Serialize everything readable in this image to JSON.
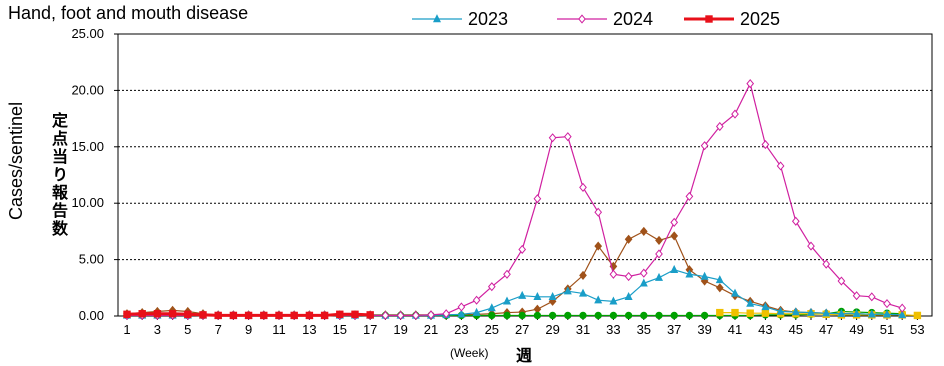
{
  "chart_data": {
    "type": "line",
    "title": "Hand, foot and mouth disease",
    "ylabel": "Cases/sentinel",
    "ylabel_jp": "定点当り報告数",
    "xlabel": "(Week)",
    "xlabel_jp": "週",
    "ylim": [
      0,
      25
    ],
    "yticks": [
      "0.00",
      "5.00",
      "10.00",
      "15.00",
      "20.00",
      "25.00"
    ],
    "xlim": [
      1,
      53
    ],
    "xticks": [
      1,
      3,
      5,
      7,
      9,
      11,
      13,
      15,
      17,
      19,
      21,
      23,
      25,
      27,
      29,
      31,
      33,
      35,
      37,
      39,
      41,
      43,
      45,
      47,
      49,
      51,
      53
    ],
    "grid": "horizontal-dotted",
    "legend_position": "top",
    "series": [
      {
        "name": "",
        "color": "#a0521a",
        "marker": "diamond-filled",
        "legend": false,
        "x": [
          1,
          2,
          3,
          4,
          5,
          6,
          7,
          8,
          9,
          10,
          11,
          12,
          13,
          14,
          15,
          16,
          17,
          18,
          19,
          20,
          21,
          22,
          23,
          24,
          25,
          26,
          27,
          28,
          29,
          30,
          31,
          32,
          33,
          34,
          35,
          36,
          37,
          38,
          39,
          40,
          41,
          42,
          43,
          44,
          45,
          46,
          47,
          48,
          49,
          50,
          51,
          52
        ],
        "values": [
          0.2,
          0.3,
          0.4,
          0.5,
          0.4,
          0.2,
          0.1,
          0.1,
          0.1,
          0.1,
          0.1,
          0.1,
          0.1,
          0.1,
          0.1,
          0.1,
          0.1,
          0.1,
          0.1,
          0.1,
          0.1,
          0.1,
          0.1,
          0.15,
          0.2,
          0.3,
          0.35,
          0.6,
          1.3,
          2.4,
          3.6,
          6.2,
          4.4,
          6.8,
          7.5,
          6.7,
          7.1,
          4.1,
          3.1,
          2.5,
          1.8,
          1.3,
          0.9,
          0.5,
          0.35,
          0.3,
          0.25,
          0.2,
          0.2,
          0.15,
          0.1,
          0.1
        ]
      },
      {
        "name": "",
        "color": "#00a000",
        "marker": "circle-filled",
        "legend": false,
        "x": [
          1,
          2,
          3,
          4,
          5,
          6,
          7,
          8,
          9,
          10,
          11,
          12,
          13,
          14,
          15,
          16,
          17,
          18,
          19,
          20,
          21,
          22,
          23,
          24,
          25,
          26,
          27,
          28,
          29,
          30,
          31,
          32,
          33,
          34,
          35,
          36,
          37,
          38,
          39,
          40,
          41,
          42,
          43,
          44,
          45,
          46,
          47,
          48,
          49,
          50,
          51,
          52
        ],
        "values": [
          0.05,
          0.05,
          0.05,
          0.05,
          0.05,
          0.05,
          0.05,
          0.05,
          0.05,
          0.05,
          0.05,
          0.05,
          0.05,
          0.05,
          0.05,
          0.05,
          0.05,
          0.05,
          0.05,
          0.05,
          0.05,
          0.05,
          0.05,
          0.05,
          0.05,
          0.05,
          0.05,
          0.05,
          0.05,
          0.05,
          0.05,
          0.05,
          0.05,
          0.05,
          0.05,
          0.05,
          0.05,
          0.05,
          0.05,
          0.05,
          0.05,
          0.05,
          0.1,
          0.1,
          0.1,
          0.15,
          0.2,
          0.4,
          0.35,
          0.3,
          0.25,
          0.2
        ]
      },
      {
        "name": "",
        "color": "#f0c000",
        "marker": "square-filled",
        "legend": false,
        "x": [
          40,
          41,
          42,
          43,
          44,
          45,
          46,
          47,
          48,
          49,
          50,
          51,
          52,
          53
        ],
        "values": [
          0.3,
          0.3,
          0.25,
          0.25,
          0.2,
          0.2,
          0.2,
          0.15,
          0.1,
          0.1,
          0.1,
          0.1,
          0.1,
          0.05
        ]
      },
      {
        "name": "2023",
        "color": "#1a9ec8",
        "marker": "triangle-filled",
        "legend": true,
        "x": [
          1,
          2,
          3,
          4,
          5,
          6,
          7,
          8,
          9,
          10,
          11,
          12,
          13,
          14,
          15,
          16,
          17,
          18,
          19,
          20,
          21,
          22,
          23,
          24,
          25,
          26,
          27,
          28,
          29,
          30,
          31,
          32,
          33,
          34,
          35,
          36,
          37,
          38,
          39,
          40,
          41,
          42,
          43,
          44,
          45,
          46,
          47,
          48,
          49,
          50,
          51,
          52
        ],
        "values": [
          0.05,
          0.05,
          0.05,
          0.05,
          0.05,
          0.05,
          0.05,
          0.05,
          0.05,
          0.05,
          0.05,
          0.05,
          0.05,
          0.05,
          0.05,
          0.05,
          0.05,
          0.05,
          0.05,
          0.05,
          0.05,
          0.1,
          0.15,
          0.3,
          0.7,
          1.3,
          1.8,
          1.7,
          1.7,
          2.2,
          2.0,
          1.4,
          1.3,
          1.7,
          2.9,
          3.4,
          4.1,
          3.7,
          3.5,
          3.2,
          2.0,
          1.1,
          0.8,
          0.4,
          0.35,
          0.3,
          0.25,
          0.2,
          0.2,
          0.15,
          0.15,
          0.1
        ]
      },
      {
        "name": "2024",
        "color": "#d020a0",
        "marker": "diamond-open",
        "legend": true,
        "x": [
          1,
          2,
          3,
          4,
          5,
          6,
          7,
          8,
          9,
          10,
          11,
          12,
          13,
          14,
          15,
          16,
          17,
          18,
          19,
          20,
          21,
          22,
          23,
          24,
          25,
          26,
          27,
          28,
          29,
          30,
          31,
          32,
          33,
          34,
          35,
          36,
          37,
          38,
          39,
          40,
          41,
          42,
          43,
          44,
          45,
          46,
          47,
          48,
          49,
          50,
          51,
          52
        ],
        "values": [
          0.05,
          0.05,
          0.05,
          0.05,
          0.05,
          0.05,
          0.05,
          0.05,
          0.05,
          0.05,
          0.05,
          0.05,
          0.05,
          0.05,
          0.05,
          0.05,
          0.05,
          0.05,
          0.05,
          0.05,
          0.1,
          0.2,
          0.8,
          1.4,
          2.6,
          3.7,
          5.9,
          10.4,
          15.8,
          15.9,
          11.4,
          9.2,
          3.7,
          3.5,
          3.8,
          5.5,
          8.3,
          10.6,
          15.1,
          16.8,
          17.9,
          20.6,
          15.2,
          13.3,
          8.4,
          6.2,
          4.6,
          3.1,
          1.8,
          1.7,
          1.1,
          0.7
        ]
      },
      {
        "name": "2025",
        "color": "#e8101a",
        "marker": "square-filled",
        "legend": true,
        "x": [
          1,
          2,
          3,
          4,
          5,
          6,
          7,
          8,
          9,
          10,
          11,
          12,
          13,
          14,
          15,
          16,
          17
        ],
        "values": [
          0.15,
          0.2,
          0.2,
          0.2,
          0.15,
          0.1,
          0.05,
          0.05,
          0.05,
          0.05,
          0.05,
          0.05,
          0.05,
          0.05,
          0.15,
          0.15,
          0.1
        ]
      }
    ]
  }
}
